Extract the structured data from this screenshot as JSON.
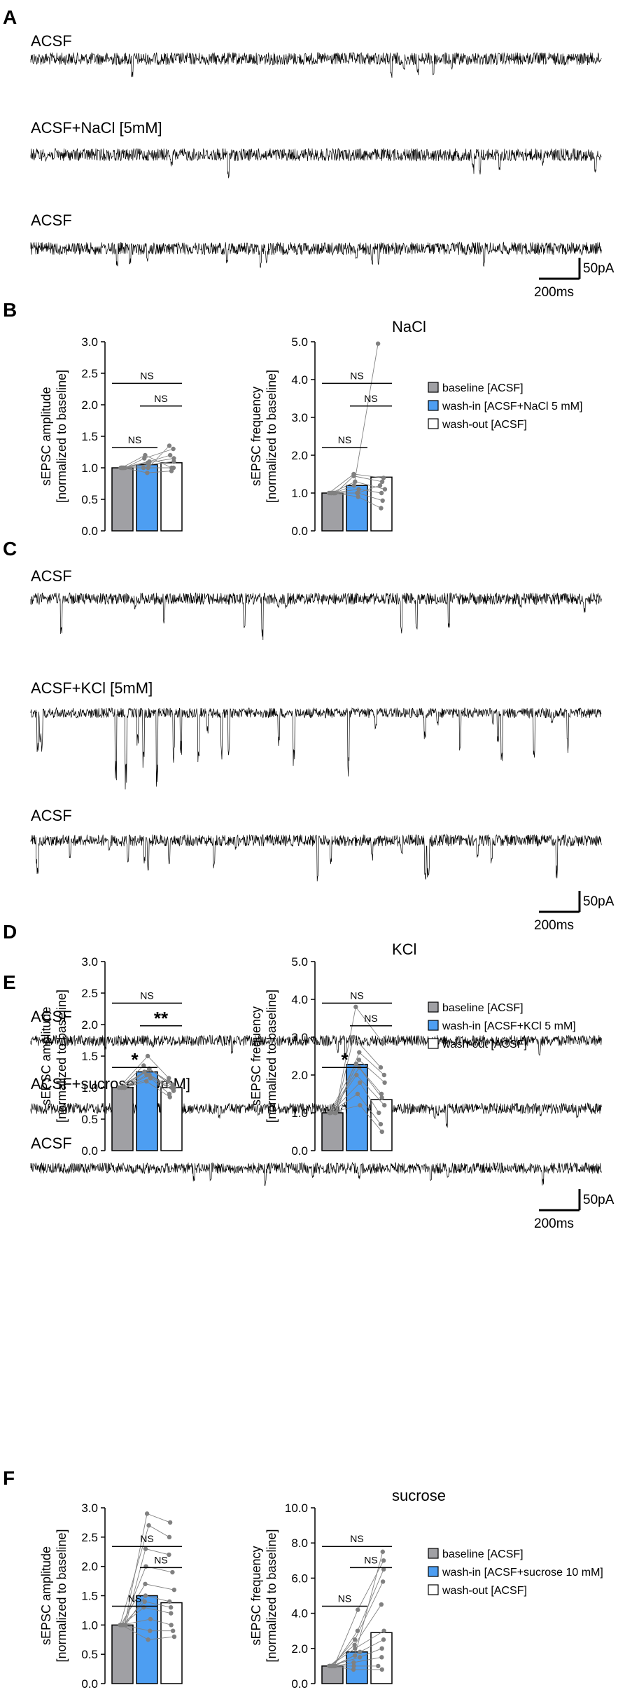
{
  "colors": {
    "baseline": "#a0a0a4",
    "washin": "#4d9ef2",
    "washout": "#ffffff",
    "points": "#808080",
    "trace": "#000000"
  },
  "scalebar": {
    "amplitude": "50pA",
    "time": "200ms"
  },
  "panels": [
    {
      "letter": "A",
      "trace_labels": [
        "ACSF",
        "ACSF+NaCl [5mM]",
        "ACSF"
      ]
    },
    {
      "letter": "B",
      "title": "NaCl",
      "legend": [
        "baseline [ACSF]",
        "wash-in [ACSF+NaCl 5 mM]",
        "wash-out [ACSF]"
      ],
      "charts": [
        {
          "ylabel": [
            "sEPSC amplitude",
            "[normalized to baseline]"
          ],
          "yticks": [
            "0.0",
            "0.5",
            "1.0",
            "1.5",
            "2.0",
            "2.5",
            "3.0"
          ]
        },
        {
          "ylabel": [
            "sEPSC frequency",
            "[normalized to baseline]"
          ],
          "yticks": [
            "0.0",
            "1.0",
            "2.0",
            "3.0",
            "4.0",
            "5.0"
          ]
        }
      ],
      "sig": [
        [
          "NS",
          "NS",
          "NS"
        ],
        [
          "NS",
          "NS",
          "NS"
        ]
      ]
    },
    {
      "letter": "C",
      "trace_labels": [
        "ACSF",
        "ACSF+KCl [5mM]",
        "ACSF"
      ]
    },
    {
      "letter": "D",
      "title": "KCl",
      "legend": [
        "baseline [ACSF]",
        "wash-in [ACSF+KCl 5 mM]",
        "wash-out [ACSF]"
      ],
      "charts": [
        {
          "ylabel": [
            "sEPSC amplitude",
            "[normalized to baseline]"
          ],
          "yticks": [
            "0.0",
            "0.5",
            "1.0",
            "1.5",
            "2.0",
            "2.5",
            "3.0"
          ]
        },
        {
          "ylabel": [
            "sEPSC frequency",
            "[normalized to baseline]"
          ],
          "yticks": [
            "0.0",
            "1.0",
            "2.0",
            "3.0",
            "4.0",
            "5.0"
          ]
        }
      ],
      "sig": [
        [
          "*",
          "**",
          "NS"
        ],
        [
          "*",
          "NS",
          "NS"
        ]
      ]
    },
    {
      "letter": "E",
      "trace_labels": [
        "ACSF",
        "ACSF+sucrose [10mM]",
        "ACSF"
      ]
    },
    {
      "letter": "F",
      "title": "sucrose",
      "legend": [
        "baseline [ACSF]",
        "wash-in [ACSF+sucrose 10 mM]",
        "wash-out [ACSF]"
      ],
      "charts": [
        {
          "ylabel": [
            "sEPSC amplitude",
            "[normalized to baseline]"
          ],
          "yticks": [
            "0.0",
            "0.5",
            "1.0",
            "1.5",
            "2.0",
            "2.5",
            "3.0"
          ]
        },
        {
          "ylabel": [
            "sEPSC frequency",
            "[normalized to baseline]"
          ],
          "yticks": [
            "0.0",
            "2.0",
            "4.0",
            "6.0",
            "8.0",
            "10.0"
          ]
        }
      ],
      "sig": [
        [
          "NS",
          "NS",
          "NS"
        ],
        [
          "NS",
          "NS",
          "NS"
        ]
      ]
    }
  ],
  "chart_data": [
    {
      "panel": "B",
      "type": "bar",
      "categories": [
        "baseline [ACSF]",
        "wash-in [ACSF+NaCl 5 mM]",
        "wash-out [ACSF]"
      ],
      "values": [
        1.0,
        1.05,
        1.08
      ],
      "ylabel": "sEPSC amplitude [normalized to baseline]",
      "ylim": [
        0,
        3.0
      ],
      "points": [
        [
          1,
          1,
          1,
          1,
          1,
          1,
          1,
          1
        ],
        [
          0.92,
          1.0,
          1.05,
          1.1,
          1.15,
          1.0,
          1.08,
          1.2
        ],
        [
          0.95,
          1.0,
          1.1,
          1.2,
          1.3,
          1.35,
          1.15,
          1.0
        ]
      ]
    },
    {
      "panel": "B",
      "type": "bar",
      "categories": [
        "baseline [ACSF]",
        "wash-in [ACSF+NaCl 5 mM]",
        "wash-out [ACSF]"
      ],
      "values": [
        1.0,
        1.2,
        1.42
      ],
      "ylabel": "sEPSC frequency [normalized to baseline]",
      "ylim": [
        0,
        5.0
      ],
      "points": [
        [
          1,
          1,
          1,
          1,
          1,
          1,
          1,
          1
        ],
        [
          0.9,
          1.0,
          1.1,
          1.3,
          1.45,
          1.5,
          1.2,
          1.0
        ],
        [
          0.6,
          0.8,
          1.0,
          1.1,
          1.3,
          1.4,
          4.95,
          1.2
        ]
      ]
    },
    {
      "panel": "D",
      "type": "bar",
      "categories": [
        "baseline [ACSF]",
        "wash-in [ACSF+KCl 5 mM]",
        "wash-out [ACSF]"
      ],
      "values": [
        1.0,
        1.25,
        1.0
      ],
      "ylabel": "sEPSC amplitude [normalized to baseline]",
      "ylim": [
        0,
        3.0
      ],
      "points": [
        [
          1,
          1,
          1,
          1,
          1,
          1,
          1,
          1,
          1
        ],
        [
          1.1,
          1.15,
          1.2,
          1.25,
          1.3,
          1.35,
          1.5,
          1.2,
          1.3
        ],
        [
          0.85,
          0.9,
          0.95,
          1.0,
          1.05,
          1.1,
          1.15,
          0.95,
          1.0
        ]
      ]
    },
    {
      "panel": "D",
      "type": "bar",
      "categories": [
        "baseline [ACSF]",
        "wash-in [ACSF+KCl 5 mM]",
        "wash-out [ACSF]"
      ],
      "values": [
        1.0,
        2.28,
        1.35
      ],
      "ylabel": "sEPSC frequency [normalized to baseline]",
      "ylim": [
        0,
        5.0
      ],
      "points": [
        [
          1,
          1,
          1,
          1,
          1,
          1,
          1,
          1,
          1,
          1
        ],
        [
          1.2,
          1.5,
          1.8,
          2.0,
          2.2,
          2.4,
          2.6,
          3.0,
          3.8,
          2.3
        ],
        [
          0.5,
          0.7,
          1.0,
          1.2,
          1.5,
          1.8,
          2.0,
          2.2,
          2.85,
          1.4
        ]
      ]
    },
    {
      "panel": "F",
      "type": "bar",
      "categories": [
        "baseline [ACSF]",
        "wash-in [ACSF+sucrose 10 mM]",
        "wash-out [ACSF]"
      ],
      "values": [
        1.0,
        1.5,
        1.38
      ],
      "ylabel": "sEPSC amplitude [normalized to baseline]",
      "ylim": [
        0,
        3.0
      ],
      "points": [
        [
          1,
          1,
          1,
          1,
          1,
          1,
          1,
          1,
          1,
          1,
          1
        ],
        [
          0.75,
          0.9,
          1.1,
          1.3,
          1.5,
          1.7,
          2.0,
          2.3,
          2.7,
          2.9,
          1.4
        ],
        [
          0.8,
          0.9,
          1.0,
          1.2,
          1.4,
          1.6,
          1.9,
          2.2,
          2.5,
          2.75,
          1.3
        ]
      ]
    },
    {
      "panel": "F",
      "type": "bar",
      "categories": [
        "baseline [ACSF]",
        "wash-in [ACSF+sucrose 10 mM]",
        "wash-out [ACSF]"
      ],
      "values": [
        1.0,
        1.8,
        2.9
      ],
      "ylabel": "sEPSC frequency [normalized to baseline]",
      "ylim": [
        0,
        10.0
      ],
      "points": [
        [
          1,
          1,
          1,
          1,
          1,
          1,
          1,
          1,
          1,
          1,
          1
        ],
        [
          0.8,
          1.0,
          1.2,
          1.5,
          1.8,
          2.0,
          2.2,
          2.5,
          3.0,
          4.2,
          1.6
        ],
        [
          0.8,
          1.0,
          1.5,
          2.0,
          2.5,
          3.0,
          4.5,
          5.8,
          6.5,
          7.0,
          7.5
        ]
      ]
    }
  ]
}
